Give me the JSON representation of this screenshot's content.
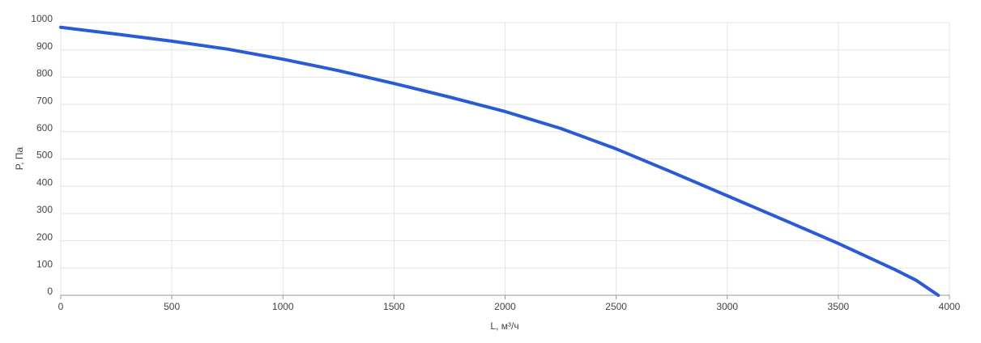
{
  "chart_data": {
    "type": "line",
    "x_label": "L, м³/ч",
    "y_label": "P, Па",
    "x": [
      0,
      250,
      500,
      750,
      1000,
      1250,
      1500,
      1750,
      2000,
      2250,
      2500,
      2750,
      3000,
      3250,
      3500,
      3750,
      3850,
      3950
    ],
    "series": [
      {
        "name": "P",
        "color": "#2a5bd7",
        "values": [
          983,
          958,
          932,
          903,
          866,
          824,
          777,
          727,
          674,
          612,
          537,
          452,
          365,
          278,
          190,
          96,
          55,
          0
        ]
      }
    ],
    "xlim": [
      0,
      4000
    ],
    "xticks": [
      0,
      500,
      1000,
      1500,
      2000,
      2500,
      3000,
      3500,
      4000
    ],
    "ylim": [
      0,
      1000
    ],
    "yticks": [
      0,
      100,
      200,
      300,
      400,
      500,
      600,
      700,
      800,
      900,
      1000
    ],
    "grid": true
  }
}
